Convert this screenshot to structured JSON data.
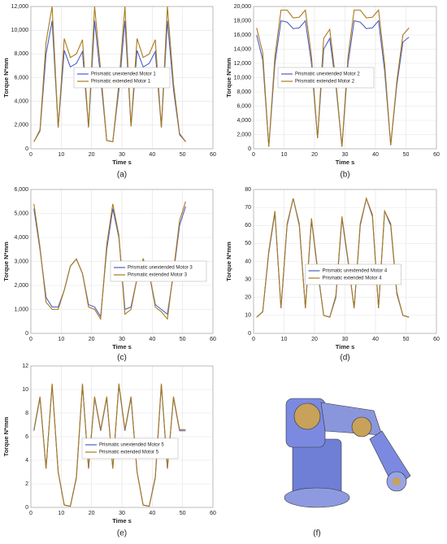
{
  "chart_data": [
    {
      "type": "line",
      "caption": "(a)",
      "x_label": "Time s",
      "y_label": "Torque N*mm",
      "x": [
        1,
        3,
        5,
        7,
        9,
        11,
        13,
        15,
        17,
        19,
        21,
        23,
        25,
        27,
        29,
        31,
        33,
        35,
        37,
        39,
        41,
        43,
        45,
        47,
        49,
        51
      ],
      "series": [
        {
          "name": "Prismatic unextended Motor 1",
          "color": "#4a5fc4",
          "values": [
            600,
            1500,
            8000,
            10800,
            1800,
            8300,
            6900,
            7200,
            8200,
            1800,
            10800,
            6000,
            700,
            600,
            5000,
            10800,
            1900,
            8300,
            6900,
            7200,
            8200,
            1800,
            10800,
            5000,
            1200,
            600
          ]
        },
        {
          "name": "Prismatic extended Motor 1",
          "color": "#a87a1c",
          "values": [
            600,
            1600,
            9000,
            12000,
            1800,
            9300,
            7700,
            8000,
            9200,
            1800,
            12000,
            6600,
            700,
            600,
            5500,
            12000,
            1900,
            9300,
            7700,
            8000,
            9200,
            1800,
            12000,
            5500,
            1300,
            600
          ]
        }
      ],
      "xlim": [
        0,
        60
      ],
      "xticks": [
        0,
        10,
        20,
        30,
        40,
        50,
        60
      ],
      "ylim": [
        0,
        12000
      ],
      "yticks": [
        0,
        {
          "value": 2000,
          "label": "2,000"
        },
        {
          "value": 4000,
          "label": "4,000"
        },
        {
          "value": 6000,
          "label": "6,000"
        },
        {
          "value": 8000,
          "label": "8,000"
        },
        {
          "value": 10000,
          "label": "10,000"
        },
        {
          "value": 12000,
          "label": "12,000"
        }
      ],
      "grid": true,
      "legend": "center"
    },
    {
      "type": "line",
      "caption": "(b)",
      "x_label": "Time s",
      "y_label": "Torque N*mm",
      "x": [
        1,
        3,
        5,
        7,
        9,
        11,
        13,
        15,
        17,
        19,
        21,
        23,
        25,
        27,
        29,
        31,
        33,
        35,
        37,
        39,
        41,
        43,
        45,
        47,
        49,
        51
      ],
      "series": [
        {
          "name": "Prismatic unextended Motor 2",
          "color": "#4a5fc4",
          "values": [
            16000,
            12500,
            300,
            12000,
            18000,
            17800,
            16900,
            17000,
            18000,
            12000,
            1500,
            14000,
            15500,
            9000,
            300,
            12000,
            18000,
            17800,
            16900,
            17000,
            18000,
            11000,
            500,
            9000,
            15000,
            15700
          ]
        },
        {
          "name": "Prismatic extended Motor 2",
          "color": "#a87a1c",
          "values": [
            17000,
            13500,
            300,
            13000,
            19500,
            19500,
            18400,
            18500,
            19500,
            13000,
            1500,
            15500,
            16800,
            9500,
            300,
            13000,
            19500,
            19500,
            18400,
            18500,
            19500,
            12000,
            500,
            9500,
            16000,
            17000
          ]
        }
      ],
      "xlim": [
        0,
        60
      ],
      "xticks": [
        0,
        10,
        20,
        30,
        40,
        50,
        60
      ],
      "ylim": [
        0,
        20000
      ],
      "yticks": [
        0,
        {
          "value": 2000,
          "label": "2,000"
        },
        {
          "value": 4000,
          "label": "4,000"
        },
        {
          "value": 6000,
          "label": "6,000"
        },
        {
          "value": 8000,
          "label": "8,000"
        },
        {
          "value": 10000,
          "label": "10,000"
        },
        {
          "value": 12000,
          "label": "12,000"
        },
        {
          "value": 14000,
          "label": "14,000"
        },
        {
          "value": 16000,
          "label": "16,000"
        },
        {
          "value": 18000,
          "label": "18,000"
        },
        {
          "value": 20000,
          "label": "20,000"
        }
      ],
      "grid": true,
      "legend": "lower-left"
    },
    {
      "type": "line",
      "caption": "(c)",
      "x_label": "Time s",
      "y_label": "Torque N*mm",
      "x": [
        1,
        3,
        5,
        7,
        9,
        11,
        13,
        15,
        17,
        19,
        21,
        23,
        25,
        27,
        29,
        31,
        33,
        35,
        37,
        39,
        41,
        43,
        45,
        47,
        49,
        51
      ],
      "series": [
        {
          "name": "Prismatic unextended Motor 3",
          "color": "#4a5fc4",
          "values": [
            5200,
            3500,
            1500,
            1100,
            1100,
            1800,
            2800,
            3100,
            2500,
            1200,
            1100,
            700,
            3500,
            5200,
            4000,
            1000,
            1100,
            2300,
            3100,
            2500,
            1200,
            1000,
            800,
            2500,
            4500,
            5300
          ]
        },
        {
          "name": "Prismatic extended Motor 3",
          "color": "#a87a1c",
          "values": [
            5400,
            3600,
            1300,
            1000,
            1000,
            1800,
            2800,
            3100,
            2500,
            1100,
            1000,
            600,
            3700,
            5400,
            4100,
            800,
            1000,
            2300,
            3100,
            2500,
            1100,
            900,
            600,
            2600,
            4700,
            5500
          ]
        }
      ],
      "xlim": [
        0,
        60
      ],
      "xticks": [
        0,
        10,
        20,
        30,
        40,
        50,
        60
      ],
      "ylim": [
        0,
        6000
      ],
      "yticks": [
        0,
        {
          "value": 1000,
          "label": "1,000"
        },
        {
          "value": 2000,
          "label": "2,000"
        },
        {
          "value": 3000,
          "label": "3,000"
        },
        {
          "value": 4000,
          "label": "4,000"
        },
        {
          "value": 5000,
          "label": "5,000"
        },
        {
          "value": 6000,
          "label": "6,000"
        }
      ],
      "grid": true,
      "legend": "right"
    },
    {
      "type": "line",
      "caption": "(d)",
      "x_label": "Time s",
      "y_label": "Torque N*mm",
      "x": [
        1,
        3,
        5,
        7,
        9,
        11,
        13,
        15,
        17,
        19,
        21,
        23,
        25,
        27,
        29,
        31,
        33,
        35,
        37,
        39,
        41,
        43,
        45,
        47,
        49,
        51
      ],
      "series": [
        {
          "name": "Prismatic unextended Motor 4",
          "color": "#4a5fc4",
          "values": [
            9,
            12,
            45,
            67,
            14,
            60,
            75,
            60,
            14,
            63,
            35,
            10,
            9,
            20,
            64,
            40,
            14,
            60,
            75,
            65,
            14,
            68,
            60,
            22,
            10,
            9
          ]
        },
        {
          "name": "Prismatic extended Motor 4",
          "color": "#a87a1c",
          "values": [
            9,
            12,
            46,
            68,
            14,
            61,
            75,
            61,
            14,
            64,
            36,
            10,
            9,
            21,
            65,
            41,
            14,
            61,
            75,
            66,
            14,
            68,
            61,
            23,
            10,
            9
          ]
        }
      ],
      "xlim": [
        0,
        60
      ],
      "xticks": [
        0,
        10,
        20,
        30,
        40,
        50,
        60
      ],
      "ylim": [
        0,
        80
      ],
      "yticks": [
        0,
        10,
        20,
        30,
        40,
        50,
        60,
        70,
        80
      ],
      "grid": true,
      "legend": "lower-center"
    },
    {
      "type": "line",
      "caption": "(e)",
      "x_label": "Time s",
      "y_label": "Torque N*mm",
      "x": [
        1,
        3,
        5,
        7,
        9,
        11,
        13,
        15,
        17,
        19,
        21,
        23,
        25,
        27,
        29,
        31,
        33,
        35,
        37,
        39,
        41,
        43,
        45,
        47,
        49,
        51
      ],
      "series": [
        {
          "name": "Prismatic unextended Motor 5",
          "color": "#4a5fc4",
          "values": [
            6.5,
            9.3,
            3.3,
            10.4,
            3,
            0.2,
            0.1,
            2.5,
            10.4,
            3.3,
            9.3,
            6.5,
            9.3,
            3.3,
            10.4,
            6.5,
            9.3,
            3,
            0.2,
            0.1,
            2.5,
            10.4,
            3.3,
            9.3,
            6.5,
            6.5
          ]
        },
        {
          "name": "Prismatic extended Motor 5",
          "color": "#a87a1c",
          "values": [
            6.6,
            9.4,
            3.3,
            10.5,
            3,
            0.2,
            0.1,
            2.6,
            10.5,
            3.3,
            9.4,
            6.6,
            9.4,
            3.3,
            10.5,
            6.6,
            9.4,
            3,
            0.2,
            0.1,
            2.6,
            10.5,
            3.3,
            9.4,
            6.6,
            6.6
          ]
        }
      ],
      "xlim": [
        0,
        60
      ],
      "xticks": [
        0,
        10,
        20,
        30,
        40,
        50,
        60
      ],
      "ylim": [
        0,
        12
      ],
      "yticks": [
        0,
        2,
        4,
        6,
        8,
        10,
        12
      ],
      "grid": true,
      "legend": "lower-center"
    }
  ],
  "image_caption": "(f)"
}
